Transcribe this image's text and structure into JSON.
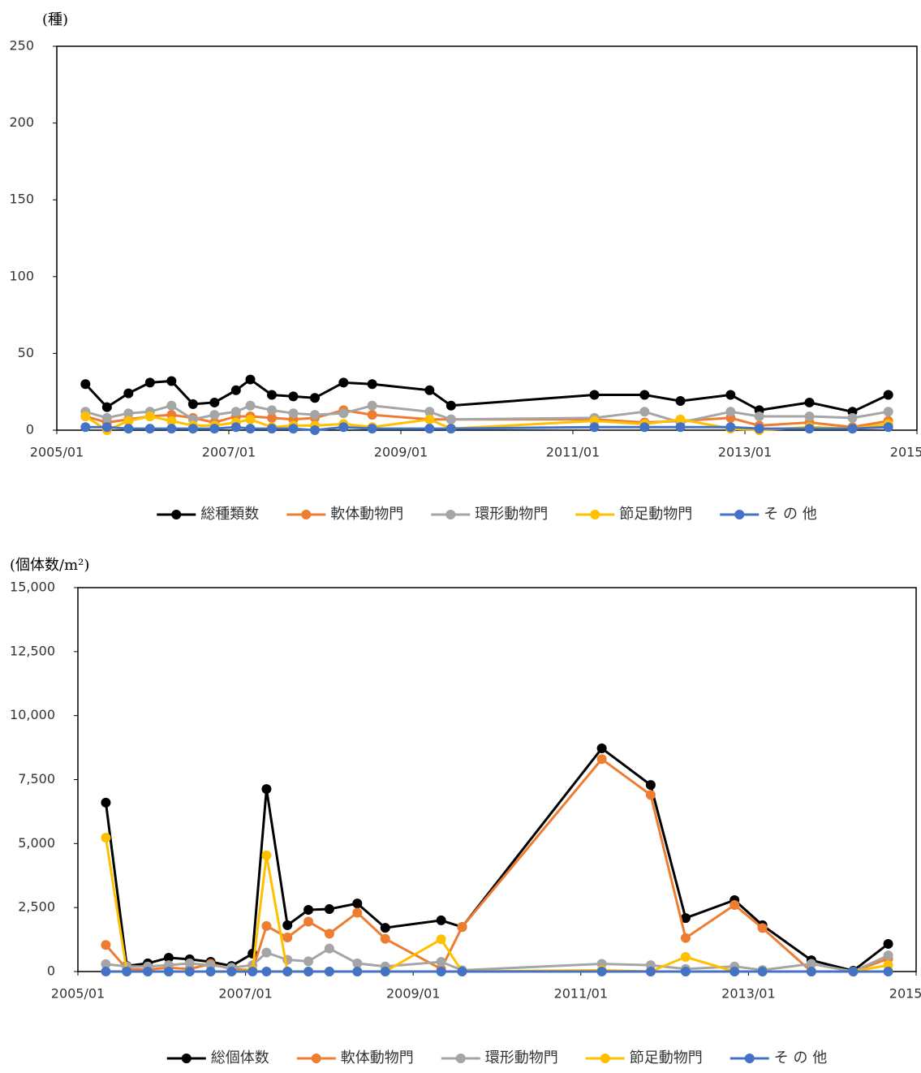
{
  "chart_data": [
    {
      "type": "line",
      "ylabel": "(種)",
      "x": [
        "2005/05",
        "2005/08",
        "2005/11",
        "2006/02",
        "2006/05",
        "2006/08",
        "2006/11",
        "2007/02",
        "2007/04",
        "2007/07",
        "2007/10",
        "2008/01",
        "2008/05",
        "2008/09",
        "2009/05",
        "2009/08",
        "2011/04",
        "2011/11",
        "2012/04",
        "2012/11",
        "2013/03",
        "2013/10",
        "2014/04",
        "2014/09"
      ],
      "series": [
        {
          "name": "総種類数",
          "color": "#000000",
          "values": [
            30,
            15,
            24,
            31,
            32,
            17,
            18,
            26,
            33,
            23,
            22,
            21,
            31,
            30,
            26,
            16,
            23,
            23,
            19,
            23,
            13,
            18,
            12,
            23
          ]
        },
        {
          "name": "軟体動物門",
          "color": "#ed7d31",
          "values": [
            9,
            5,
            7,
            9,
            10,
            8,
            5,
            9,
            9,
            8,
            7,
            8,
            13,
            10,
            7,
            7,
            7,
            5,
            6,
            8,
            3,
            5,
            2,
            6
          ]
        },
        {
          "name": "環形動物門",
          "color": "#a5a5a5",
          "values": [
            12,
            8,
            11,
            12,
            16,
            7,
            10,
            12,
            16,
            13,
            11,
            10,
            11,
            16,
            12,
            7,
            8,
            12,
            5,
            12,
            9,
            9,
            8,
            12
          ]
        },
        {
          "name": "節足動物門",
          "color": "#ffc000",
          "values": [
            9,
            0,
            6,
            9,
            6,
            3,
            3,
            5,
            7,
            2,
            3,
            3,
            4,
            2,
            7,
            1,
            6,
            4,
            7,
            1,
            0,
            2,
            1,
            4
          ]
        },
        {
          "name": "そ の 他",
          "color": "#4472c4",
          "values": [
            2,
            2,
            1,
            1,
            1,
            1,
            1,
            2,
            1,
            1,
            1,
            0,
            2,
            1,
            1,
            1,
            2,
            2,
            2,
            2,
            1,
            1,
            1,
            2
          ]
        }
      ],
      "xlim": [
        "2005/01",
        "2015/01"
      ],
      "xticks": [
        "2005/01",
        "2007/01",
        "2009/01",
        "2011/01",
        "2013/01",
        "2015/01"
      ],
      "ylim": [
        0,
        250
      ],
      "yticks": [
        0,
        50,
        100,
        150,
        200,
        250
      ],
      "grid": false,
      "legend": "bottom"
    },
    {
      "type": "line",
      "ylabel": "(個体数/m²)",
      "x": [
        "2005/05",
        "2005/08",
        "2005/11",
        "2006/02",
        "2006/05",
        "2006/08",
        "2006/11",
        "2007/02",
        "2007/04",
        "2007/07",
        "2007/10",
        "2008/01",
        "2008/05",
        "2008/09",
        "2009/05",
        "2009/08",
        "2011/04",
        "2011/11",
        "2012/04",
        "2012/11",
        "2013/03",
        "2013/10",
        "2014/04",
        "2014/09"
      ],
      "series": [
        {
          "name": "総個体数",
          "color": "#000000",
          "values": [
            6600,
            220,
            320,
            540,
            480,
            380,
            220,
            700,
            7130,
            1810,
            2410,
            2440,
            2660,
            1710,
            2000,
            1740,
            8720,
            7290,
            2090,
            2790,
            1810,
            440,
            30,
            1080
          ]
        },
        {
          "name": "軟体動物門",
          "color": "#ed7d31",
          "values": [
            1040,
            100,
            80,
            150,
            100,
            300,
            100,
            50,
            1780,
            1330,
            1950,
            1480,
            2300,
            1280,
            100,
            1740,
            8300,
            6900,
            1310,
            2600,
            1700,
            0,
            0,
            500
          ]
        },
        {
          "name": "環形動物門",
          "color": "#a5a5a5",
          "values": [
            290,
            200,
            200,
            250,
            320,
            250,
            150,
            250,
            740,
            460,
            400,
            900,
            320,
            200,
            380,
            50,
            300,
            250,
            100,
            200,
            60,
            300,
            0,
            630
          ]
        },
        {
          "name": "節足動物門",
          "color": "#ffc000",
          "values": [
            5230,
            0,
            0,
            0,
            0,
            0,
            0,
            50,
            4540,
            0,
            0,
            0,
            0,
            0,
            1260,
            0,
            50,
            0,
            570,
            0,
            0,
            0,
            0,
            250
          ]
        },
        {
          "name": "そ の 他",
          "color": "#4472c4",
          "values": [
            0,
            0,
            0,
            0,
            0,
            0,
            0,
            0,
            0,
            0,
            0,
            0,
            0,
            0,
            0,
            0,
            0,
            0,
            0,
            0,
            0,
            0,
            0,
            0
          ]
        }
      ],
      "xlim": [
        "2005/01",
        "2015/01"
      ],
      "xticks": [
        "2005/01",
        "2007/01",
        "2009/01",
        "2011/01",
        "2013/01",
        "2015/01"
      ],
      "ylim": [
        0,
        15000
      ],
      "yticks": [
        0,
        {
          "value": 2500,
          "label": "2,500"
        },
        {
          "value": 5000,
          "label": "5,000"
        },
        {
          "value": 7500,
          "label": "7,500"
        },
        {
          "value": 10000,
          "label": "10,000"
        },
        {
          "value": 12500,
          "label": "12,500"
        },
        {
          "value": 15000,
          "label": "15,000"
        }
      ],
      "grid": false,
      "legend": "bottom"
    }
  ]
}
